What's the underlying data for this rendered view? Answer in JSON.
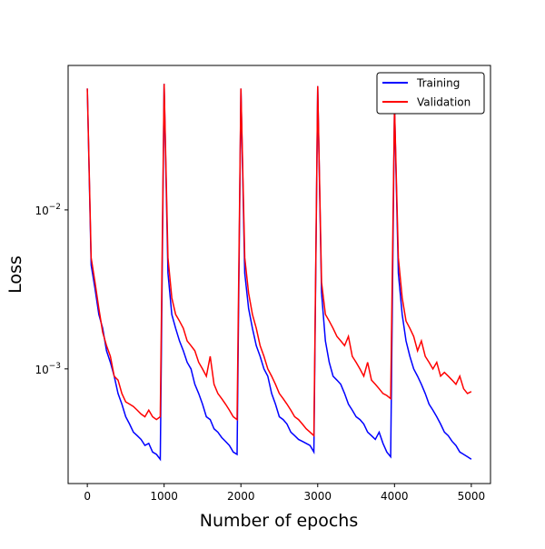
{
  "chart_data": {
    "type": "line",
    "xlabel": "Number of epochs",
    "ylabel": "Loss",
    "yscale": "log",
    "legend": "upper right",
    "xlim": [
      -250,
      5250
    ],
    "xticks": [
      0,
      1000,
      2000,
      3000,
      4000,
      5000
    ],
    "ylim": [
      0.00019,
      0.081
    ],
    "yticks": [
      {
        "value": 0.01,
        "label": "10−2"
      },
      {
        "value": 0.001,
        "label": "10−3"
      }
    ],
    "x": [
      0,
      50,
      100,
      150,
      200,
      250,
      300,
      350,
      400,
      450,
      500,
      550,
      600,
      650,
      700,
      750,
      800,
      850,
      900,
      950,
      1000,
      1050,
      1100,
      1150,
      1200,
      1250,
      1300,
      1350,
      1400,
      1450,
      1500,
      1550,
      1600,
      1650,
      1700,
      1750,
      1800,
      1850,
      1900,
      1950,
      2000,
      2050,
      2100,
      2150,
      2200,
      2250,
      2300,
      2350,
      2400,
      2450,
      2500,
      2550,
      2600,
      2650,
      2700,
      2750,
      2800,
      2850,
      2900,
      2950,
      3000,
      3050,
      3100,
      3150,
      3200,
      3250,
      3300,
      3350,
      3400,
      3450,
      3500,
      3550,
      3600,
      3650,
      3700,
      3750,
      3800,
      3850,
      3900,
      3950,
      4000,
      4050,
      4100,
      4150,
      4200,
      4250,
      4300,
      4350,
      4400,
      4450,
      4500,
      4550,
      4600,
      4650,
      4700,
      4750,
      4800,
      4850,
      4900,
      4950,
      5000
    ],
    "series": [
      {
        "name": "Training",
        "color": "#0000ff",
        "values": [
          0.058,
          0.0045,
          0.0032,
          0.0022,
          0.0018,
          0.0013,
          0.0011,
          0.0009,
          0.0007,
          0.0006,
          0.0005,
          0.00045,
          0.0004,
          0.00038,
          0.00036,
          0.00033,
          0.00034,
          0.0003,
          0.00029,
          0.00027,
          0.062,
          0.004,
          0.0022,
          0.0018,
          0.0015,
          0.0013,
          0.0011,
          0.001,
          0.0008,
          0.0007,
          0.0006,
          0.0005,
          0.00048,
          0.00042,
          0.0004,
          0.00037,
          0.00035,
          0.00033,
          0.0003,
          0.00029,
          0.058,
          0.004,
          0.0024,
          0.0018,
          0.0014,
          0.0012,
          0.001,
          0.0009,
          0.0007,
          0.0006,
          0.0005,
          0.00048,
          0.00045,
          0.0004,
          0.00038,
          0.00036,
          0.00035,
          0.00034,
          0.00033,
          0.0003,
          0.06,
          0.003,
          0.0015,
          0.0011,
          0.0009,
          0.00085,
          0.0008,
          0.0007,
          0.0006,
          0.00055,
          0.0005,
          0.00048,
          0.00045,
          0.0004,
          0.00038,
          0.00036,
          0.0004,
          0.00034,
          0.0003,
          0.00028,
          0.045,
          0.004,
          0.0022,
          0.0015,
          0.0012,
          0.001,
          0.0009,
          0.0008,
          0.0007,
          0.0006,
          0.00055,
          0.0005,
          0.00045,
          0.0004,
          0.00038,
          0.00035,
          0.00033,
          0.0003,
          0.00029,
          0.00028,
          0.00027
        ]
      },
      {
        "name": "Validation",
        "color": "#ff0000",
        "values": [
          0.058,
          0.005,
          0.0035,
          0.0024,
          0.0017,
          0.0014,
          0.0012,
          0.0009,
          0.00085,
          0.0007,
          0.00062,
          0.0006,
          0.00058,
          0.00055,
          0.00052,
          0.0005,
          0.00055,
          0.0005,
          0.00048,
          0.0005,
          0.062,
          0.005,
          0.0028,
          0.0022,
          0.002,
          0.0018,
          0.0015,
          0.0014,
          0.0013,
          0.0011,
          0.001,
          0.0009,
          0.0012,
          0.0008,
          0.0007,
          0.00065,
          0.0006,
          0.00055,
          0.0005,
          0.00048,
          0.058,
          0.005,
          0.003,
          0.0022,
          0.0018,
          0.0014,
          0.0012,
          0.001,
          0.0009,
          0.0008,
          0.0007,
          0.00065,
          0.0006,
          0.00055,
          0.0005,
          0.00048,
          0.00045,
          0.00042,
          0.0004,
          0.00038,
          0.06,
          0.0035,
          0.0022,
          0.002,
          0.0018,
          0.0016,
          0.0015,
          0.0014,
          0.0016,
          0.0012,
          0.0011,
          0.001,
          0.0009,
          0.0011,
          0.00085,
          0.0008,
          0.00075,
          0.0007,
          0.00068,
          0.00065,
          0.045,
          0.005,
          0.0028,
          0.002,
          0.0018,
          0.0016,
          0.0013,
          0.0015,
          0.0012,
          0.0011,
          0.001,
          0.0011,
          0.0009,
          0.00095,
          0.0009,
          0.00085,
          0.0008,
          0.0009,
          0.00075,
          0.0007,
          0.00072
        ]
      }
    ]
  }
}
